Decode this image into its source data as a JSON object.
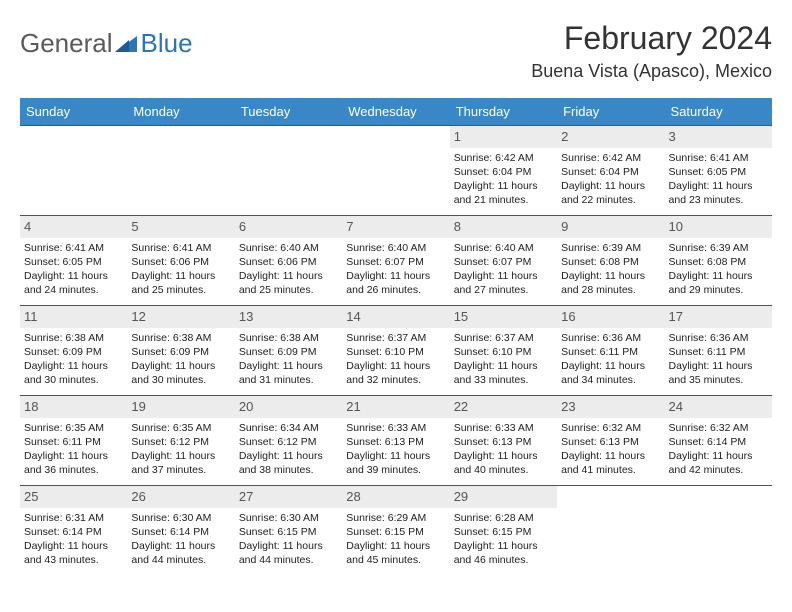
{
  "logo": {
    "part1": "General",
    "part2": "Blue"
  },
  "title": "February 2024",
  "location": "Buena Vista (Apasco), Mexico",
  "colors": {
    "header_bg": "#3a87c7",
    "header_text": "#ffffff",
    "border": "#2e5c8a",
    "daynum_bg": "#ececec",
    "logo_gray": "#5a5a5a",
    "logo_blue": "#2e75b6"
  },
  "day_labels": [
    "Sunday",
    "Monday",
    "Tuesday",
    "Wednesday",
    "Thursday",
    "Friday",
    "Saturday"
  ],
  "weeks": [
    [
      null,
      null,
      null,
      null,
      {
        "n": "1",
        "sr": "Sunrise: 6:42 AM",
        "ss": "Sunset: 6:04 PM",
        "d1": "Daylight: 11 hours",
        "d2": "and 21 minutes."
      },
      {
        "n": "2",
        "sr": "Sunrise: 6:42 AM",
        "ss": "Sunset: 6:04 PM",
        "d1": "Daylight: 11 hours",
        "d2": "and 22 minutes."
      },
      {
        "n": "3",
        "sr": "Sunrise: 6:41 AM",
        "ss": "Sunset: 6:05 PM",
        "d1": "Daylight: 11 hours",
        "d2": "and 23 minutes."
      }
    ],
    [
      {
        "n": "4",
        "sr": "Sunrise: 6:41 AM",
        "ss": "Sunset: 6:05 PM",
        "d1": "Daylight: 11 hours",
        "d2": "and 24 minutes."
      },
      {
        "n": "5",
        "sr": "Sunrise: 6:41 AM",
        "ss": "Sunset: 6:06 PM",
        "d1": "Daylight: 11 hours",
        "d2": "and 25 minutes."
      },
      {
        "n": "6",
        "sr": "Sunrise: 6:40 AM",
        "ss": "Sunset: 6:06 PM",
        "d1": "Daylight: 11 hours",
        "d2": "and 25 minutes."
      },
      {
        "n": "7",
        "sr": "Sunrise: 6:40 AM",
        "ss": "Sunset: 6:07 PM",
        "d1": "Daylight: 11 hours",
        "d2": "and 26 minutes."
      },
      {
        "n": "8",
        "sr": "Sunrise: 6:40 AM",
        "ss": "Sunset: 6:07 PM",
        "d1": "Daylight: 11 hours",
        "d2": "and 27 minutes."
      },
      {
        "n": "9",
        "sr": "Sunrise: 6:39 AM",
        "ss": "Sunset: 6:08 PM",
        "d1": "Daylight: 11 hours",
        "d2": "and 28 minutes."
      },
      {
        "n": "10",
        "sr": "Sunrise: 6:39 AM",
        "ss": "Sunset: 6:08 PM",
        "d1": "Daylight: 11 hours",
        "d2": "and 29 minutes."
      }
    ],
    [
      {
        "n": "11",
        "sr": "Sunrise: 6:38 AM",
        "ss": "Sunset: 6:09 PM",
        "d1": "Daylight: 11 hours",
        "d2": "and 30 minutes."
      },
      {
        "n": "12",
        "sr": "Sunrise: 6:38 AM",
        "ss": "Sunset: 6:09 PM",
        "d1": "Daylight: 11 hours",
        "d2": "and 30 minutes."
      },
      {
        "n": "13",
        "sr": "Sunrise: 6:38 AM",
        "ss": "Sunset: 6:09 PM",
        "d1": "Daylight: 11 hours",
        "d2": "and 31 minutes."
      },
      {
        "n": "14",
        "sr": "Sunrise: 6:37 AM",
        "ss": "Sunset: 6:10 PM",
        "d1": "Daylight: 11 hours",
        "d2": "and 32 minutes."
      },
      {
        "n": "15",
        "sr": "Sunrise: 6:37 AM",
        "ss": "Sunset: 6:10 PM",
        "d1": "Daylight: 11 hours",
        "d2": "and 33 minutes."
      },
      {
        "n": "16",
        "sr": "Sunrise: 6:36 AM",
        "ss": "Sunset: 6:11 PM",
        "d1": "Daylight: 11 hours",
        "d2": "and 34 minutes."
      },
      {
        "n": "17",
        "sr": "Sunrise: 6:36 AM",
        "ss": "Sunset: 6:11 PM",
        "d1": "Daylight: 11 hours",
        "d2": "and 35 minutes."
      }
    ],
    [
      {
        "n": "18",
        "sr": "Sunrise: 6:35 AM",
        "ss": "Sunset: 6:11 PM",
        "d1": "Daylight: 11 hours",
        "d2": "and 36 minutes."
      },
      {
        "n": "19",
        "sr": "Sunrise: 6:35 AM",
        "ss": "Sunset: 6:12 PM",
        "d1": "Daylight: 11 hours",
        "d2": "and 37 minutes."
      },
      {
        "n": "20",
        "sr": "Sunrise: 6:34 AM",
        "ss": "Sunset: 6:12 PM",
        "d1": "Daylight: 11 hours",
        "d2": "and 38 minutes."
      },
      {
        "n": "21",
        "sr": "Sunrise: 6:33 AM",
        "ss": "Sunset: 6:13 PM",
        "d1": "Daylight: 11 hours",
        "d2": "and 39 minutes."
      },
      {
        "n": "22",
        "sr": "Sunrise: 6:33 AM",
        "ss": "Sunset: 6:13 PM",
        "d1": "Daylight: 11 hours",
        "d2": "and 40 minutes."
      },
      {
        "n": "23",
        "sr": "Sunrise: 6:32 AM",
        "ss": "Sunset: 6:13 PM",
        "d1": "Daylight: 11 hours",
        "d2": "and 41 minutes."
      },
      {
        "n": "24",
        "sr": "Sunrise: 6:32 AM",
        "ss": "Sunset: 6:14 PM",
        "d1": "Daylight: 11 hours",
        "d2": "and 42 minutes."
      }
    ],
    [
      {
        "n": "25",
        "sr": "Sunrise: 6:31 AM",
        "ss": "Sunset: 6:14 PM",
        "d1": "Daylight: 11 hours",
        "d2": "and 43 minutes."
      },
      {
        "n": "26",
        "sr": "Sunrise: 6:30 AM",
        "ss": "Sunset: 6:14 PM",
        "d1": "Daylight: 11 hours",
        "d2": "and 44 minutes."
      },
      {
        "n": "27",
        "sr": "Sunrise: 6:30 AM",
        "ss": "Sunset: 6:15 PM",
        "d1": "Daylight: 11 hours",
        "d2": "and 44 minutes."
      },
      {
        "n": "28",
        "sr": "Sunrise: 6:29 AM",
        "ss": "Sunset: 6:15 PM",
        "d1": "Daylight: 11 hours",
        "d2": "and 45 minutes."
      },
      {
        "n": "29",
        "sr": "Sunrise: 6:28 AM",
        "ss": "Sunset: 6:15 PM",
        "d1": "Daylight: 11 hours",
        "d2": "and 46 minutes."
      },
      null,
      null
    ]
  ]
}
